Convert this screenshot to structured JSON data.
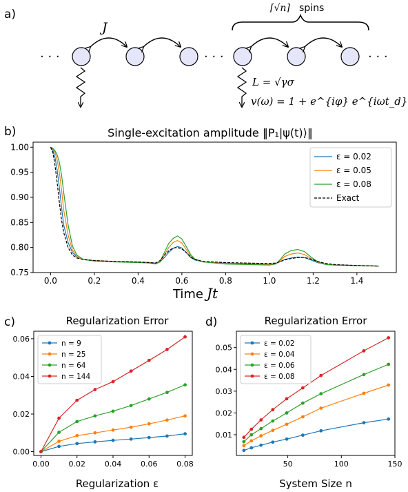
{
  "panel_a": {
    "label": "a)",
    "dots_left": "· · ·",
    "dots_mid": "· · ·",
    "dots_right": "· · ·",
    "coupling": "J",
    "brace_label_math": "⌈√n⌉",
    "brace_label_text": "spins",
    "jump_operator": "L = √γσ",
    "filter": "v(ω) = 1 + e^{iφ} e^{iωt_d}",
    "colors": {
      "node_fill": "#e6e6fb",
      "node_stroke": "#000000"
    }
  },
  "panel_b": {
    "label": "b)",
    "xlabel_text": "Time",
    "xlabel_math": "Jt"
  },
  "panel_c": {
    "label": "c)"
  },
  "panel_d": {
    "label": "d)"
  },
  "chart_data": [
    {
      "id": "b",
      "type": "line",
      "title": "Single-excitation amplitude ‖P₁|ψ(t)⟩‖",
      "xlabel": "Time Jt",
      "ylabel": "",
      "xlim": [
        -0.08,
        1.58
      ],
      "ylim": [
        0.75,
        1.01
      ],
      "xticks": [
        "0.0",
        "0.2",
        "0.4",
        "0.6",
        "0.8",
        "1.0",
        "1.2",
        "1.4"
      ],
      "yticks": [
        "0.75",
        "0.80",
        "0.85",
        "0.90",
        "0.95",
        "1.00"
      ],
      "legend": "top-right",
      "series": [
        {
          "name": "ε = 0.02",
          "color": "#1f77b4",
          "dash": "",
          "x": [
            0,
            0.01,
            0.02,
            0.03,
            0.04,
            0.05,
            0.06,
            0.08,
            0.1,
            0.12,
            0.15,
            0.2,
            0.3,
            0.4,
            0.45,
            0.48,
            0.5,
            0.52,
            0.54,
            0.56,
            0.58,
            0.6,
            0.62,
            0.64,
            0.66,
            0.7,
            0.8,
            0.9,
            1.0,
            1.03,
            1.05,
            1.07,
            1.1,
            1.13,
            1.16,
            1.19,
            1.22,
            1.26,
            1.3,
            1.4,
            1.5
          ],
          "y": [
            1.0,
            0.995,
            0.98,
            0.955,
            0.92,
            0.88,
            0.845,
            0.81,
            0.79,
            0.781,
            0.776,
            0.774,
            0.772,
            0.771,
            0.77,
            0.769,
            0.771,
            0.78,
            0.79,
            0.798,
            0.802,
            0.799,
            0.79,
            0.78,
            0.775,
            0.771,
            0.769,
            0.768,
            0.767,
            0.768,
            0.772,
            0.776,
            0.779,
            0.781,
            0.78,
            0.775,
            0.77,
            0.766,
            0.765,
            0.764,
            0.763
          ]
        },
        {
          "name": "ε = 0.05",
          "color": "#ff7f0e",
          "dash": "",
          "x": [
            0,
            0.01,
            0.02,
            0.03,
            0.04,
            0.05,
            0.06,
            0.08,
            0.1,
            0.12,
            0.15,
            0.2,
            0.3,
            0.4,
            0.45,
            0.48,
            0.5,
            0.52,
            0.54,
            0.56,
            0.58,
            0.6,
            0.62,
            0.64,
            0.66,
            0.7,
            0.8,
            0.9,
            1.0,
            1.03,
            1.05,
            1.07,
            1.1,
            1.13,
            1.16,
            1.19,
            1.22,
            1.26,
            1.3,
            1.4,
            1.5
          ],
          "y": [
            1.0,
            0.997,
            0.99,
            0.975,
            0.95,
            0.915,
            0.875,
            0.825,
            0.795,
            0.782,
            0.776,
            0.774,
            0.772,
            0.771,
            0.77,
            0.768,
            0.771,
            0.785,
            0.8,
            0.81,
            0.814,
            0.809,
            0.796,
            0.783,
            0.776,
            0.771,
            0.768,
            0.767,
            0.766,
            0.768,
            0.774,
            0.782,
            0.787,
            0.789,
            0.786,
            0.778,
            0.771,
            0.766,
            0.765,
            0.764,
            0.763
          ]
        },
        {
          "name": "ε = 0.08",
          "color": "#2ca02c",
          "dash": "",
          "x": [
            0,
            0.01,
            0.02,
            0.03,
            0.04,
            0.05,
            0.06,
            0.08,
            0.1,
            0.12,
            0.15,
            0.2,
            0.3,
            0.4,
            0.45,
            0.48,
            0.5,
            0.52,
            0.54,
            0.56,
            0.58,
            0.6,
            0.62,
            0.64,
            0.66,
            0.7,
            0.8,
            0.9,
            1.0,
            1.03,
            1.05,
            1.07,
            1.1,
            1.13,
            1.16,
            1.19,
            1.22,
            1.26,
            1.3,
            1.4,
            1.5
          ],
          "y": [
            1.0,
            0.998,
            0.993,
            0.985,
            0.97,
            0.945,
            0.91,
            0.845,
            0.803,
            0.785,
            0.776,
            0.773,
            0.771,
            0.77,
            0.769,
            0.767,
            0.771,
            0.79,
            0.808,
            0.818,
            0.823,
            0.817,
            0.802,
            0.786,
            0.777,
            0.771,
            0.767,
            0.766,
            0.765,
            0.767,
            0.776,
            0.787,
            0.794,
            0.796,
            0.792,
            0.781,
            0.772,
            0.766,
            0.765,
            0.764,
            0.763
          ]
        },
        {
          "name": "Exact",
          "color": "#000000",
          "dash": "4,2",
          "x": [
            0,
            0.01,
            0.02,
            0.03,
            0.04,
            0.05,
            0.06,
            0.08,
            0.1,
            0.12,
            0.15,
            0.2,
            0.3,
            0.4,
            0.45,
            0.48,
            0.5,
            0.52,
            0.54,
            0.56,
            0.58,
            0.6,
            0.62,
            0.64,
            0.66,
            0.7,
            0.8,
            0.9,
            1.0,
            1.03,
            1.05,
            1.07,
            1.1,
            1.13,
            1.16,
            1.19,
            1.22,
            1.26,
            1.3,
            1.4,
            1.5
          ],
          "y": [
            1.0,
            0.99,
            0.965,
            0.93,
            0.89,
            0.855,
            0.83,
            0.8,
            0.785,
            0.779,
            0.776,
            0.774,
            0.772,
            0.771,
            0.77,
            0.769,
            0.774,
            0.785,
            0.793,
            0.799,
            0.8,
            0.797,
            0.79,
            0.781,
            0.776,
            0.772,
            0.77,
            0.769,
            0.768,
            0.769,
            0.772,
            0.775,
            0.778,
            0.78,
            0.78,
            0.777,
            0.772,
            0.768,
            0.766,
            0.764,
            0.763
          ]
        }
      ]
    },
    {
      "id": "c",
      "type": "line",
      "title": "Regularization Error",
      "xlabel": "Regularization ε",
      "ylabel": "",
      "xlim": [
        -0.004,
        0.084
      ],
      "ylim": [
        -0.002,
        0.064
      ],
      "xticks": [
        0.0,
        0.02,
        0.04,
        0.06,
        0.08
      ],
      "xtick_labels": [
        "0.00",
        "0.02",
        "0.04",
        "0.06",
        "0.08"
      ],
      "yticks": [
        0.0,
        0.02,
        0.04,
        0.06
      ],
      "ytick_labels": [
        "0.00",
        "0.02",
        "0.04",
        "0.06"
      ],
      "legend": "top-left",
      "x": [
        0,
        0.01,
        0.02,
        0.03,
        0.04,
        0.05,
        0.06,
        0.07,
        0.08
      ],
      "series": [
        {
          "name": "n = 9",
          "color": "#1f77b4",
          "values": [
            0.0,
            0.0028,
            0.0043,
            0.0052,
            0.006,
            0.0067,
            0.0075,
            0.0083,
            0.0095
          ]
        },
        {
          "name": "n = 25",
          "color": "#ff7f0e",
          "values": [
            0.0,
            0.0055,
            0.0085,
            0.01,
            0.0115,
            0.013,
            0.0148,
            0.0168,
            0.019
          ]
        },
        {
          "name": "n = 64",
          "color": "#2ca02c",
          "values": [
            0.0,
            0.0103,
            0.016,
            0.019,
            0.0215,
            0.0245,
            0.028,
            0.0315,
            0.0355
          ]
        },
        {
          "name": "n = 144",
          "color": "#d62728",
          "values": [
            0.0,
            0.0178,
            0.0273,
            0.033,
            0.0372,
            0.0428,
            0.0485,
            0.0543,
            0.061
          ]
        }
      ]
    },
    {
      "id": "d",
      "type": "line",
      "title": "Regularization Error",
      "xlabel": "System Size n",
      "ylabel": "",
      "xlim": [
        2,
        150
      ],
      "ylim": [
        0.0005,
        0.0575
      ],
      "xticks": [
        50,
        100,
        150
      ],
      "xtick_labels": [
        "50",
        "100",
        "150"
      ],
      "yticks": [
        0.01,
        0.02,
        0.03,
        0.04,
        0.05
      ],
      "ytick_labels": [
        "0.01",
        "0.02",
        "0.03",
        "0.04",
        "0.05"
      ],
      "legend": "top-left",
      "x": [
        9,
        16,
        25,
        36,
        49,
        64,
        81,
        121,
        144
      ],
      "series": [
        {
          "name": "ε = 0.02",
          "color": "#1f77b4",
          "values": [
            0.0028,
            0.004,
            0.0052,
            0.0066,
            0.008,
            0.0098,
            0.0118,
            0.0155,
            0.0172
          ]
        },
        {
          "name": "ε = 0.04",
          "color": "#ff7f0e",
          "values": [
            0.005,
            0.0072,
            0.0095,
            0.012,
            0.0148,
            0.0182,
            0.0222,
            0.029,
            0.0328
          ]
        },
        {
          "name": "ε = 0.06",
          "color": "#2ca02c",
          "values": [
            0.0068,
            0.01,
            0.0128,
            0.0163,
            0.02,
            0.0245,
            0.0288,
            0.0376,
            0.0423
          ]
        },
        {
          "name": "ε = 0.08",
          "color": "#d62728",
          "values": [
            0.0088,
            0.0125,
            0.0168,
            0.0215,
            0.0265,
            0.0315,
            0.0372,
            0.0485,
            0.0545
          ]
        }
      ]
    }
  ]
}
